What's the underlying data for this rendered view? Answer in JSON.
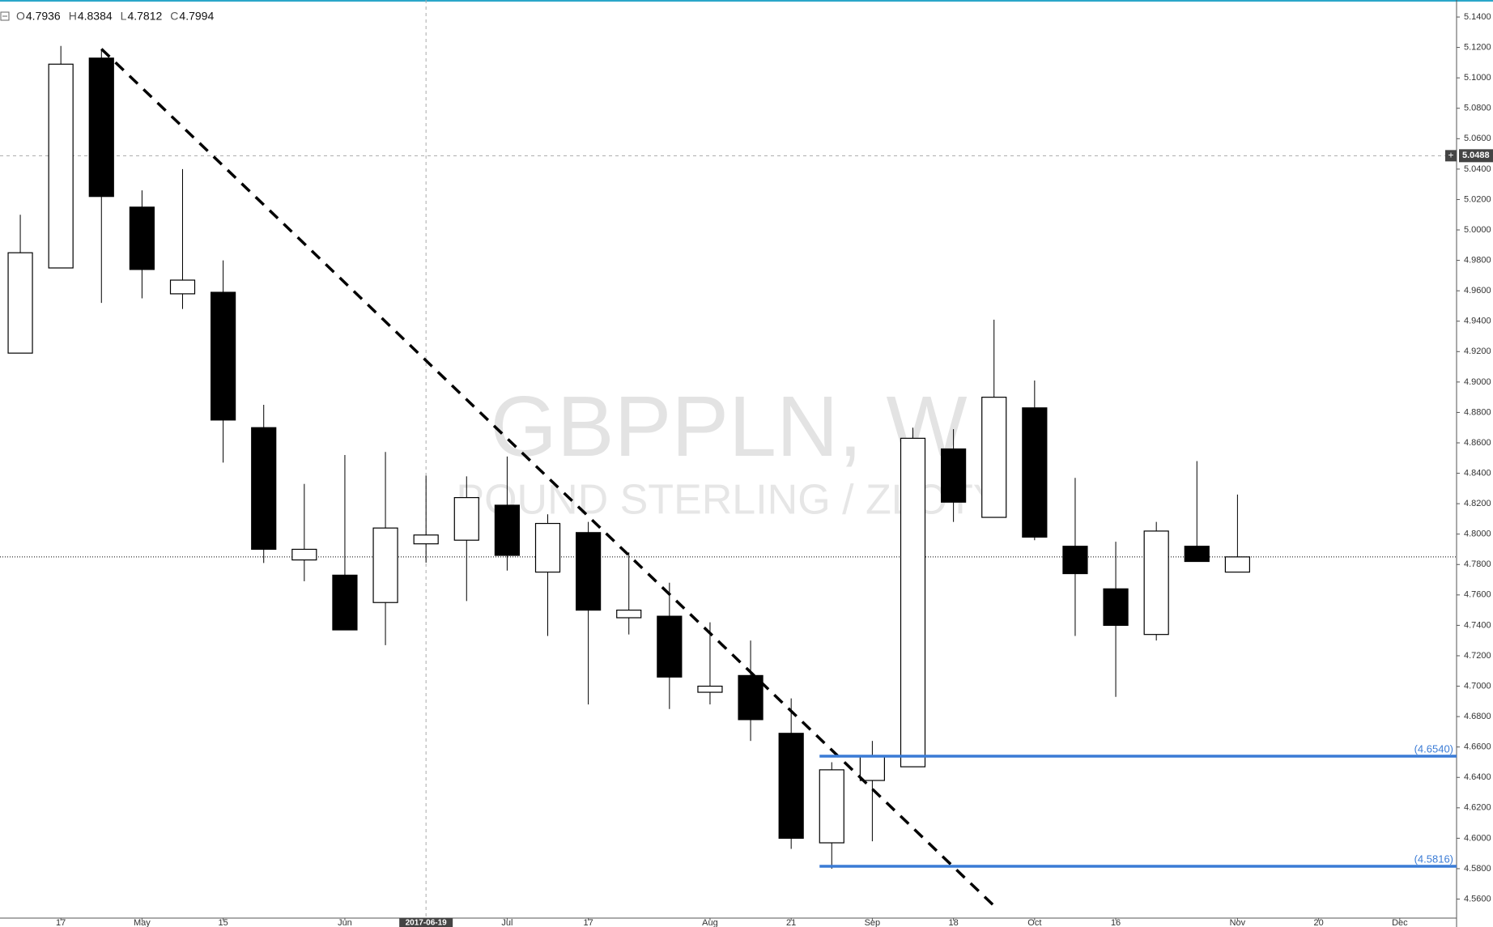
{
  "chart_data": {
    "type": "candlestick",
    "title": "GBPPLN, W",
    "subtitle": "POUND STERLING / ZLOTY",
    "ohlc_labels": [
      "O",
      "H",
      "L",
      "C"
    ],
    "hover_index": 10,
    "open": [
      4.919,
      4.975,
      5.113,
      5.015,
      4.958,
      4.959,
      4.87,
      4.783,
      4.773,
      4.755,
      4.7936,
      4.796,
      4.819,
      4.775,
      4.801,
      4.745,
      4.746,
      4.696,
      4.707,
      4.669,
      4.597,
      4.638,
      4.647,
      4.856,
      4.811,
      4.883,
      4.792,
      4.764,
      4.734,
      4.792,
      4.775
    ],
    "high": [
      5.01,
      5.121,
      5.119,
      5.026,
      5.04,
      4.98,
      4.885,
      4.833,
      4.852,
      4.854,
      4.8384,
      4.838,
      4.851,
      4.813,
      4.808,
      4.788,
      4.768,
      4.742,
      4.73,
      4.692,
      4.65,
      4.664,
      4.87,
      4.869,
      4.941,
      4.901,
      4.837,
      4.795,
      4.808,
      4.848,
      4.826
    ],
    "low": [
      4.919,
      4.975,
      4.952,
      4.955,
      4.948,
      4.847,
      4.781,
      4.769,
      4.737,
      4.727,
      4.7812,
      4.756,
      4.776,
      4.733,
      4.688,
      4.734,
      4.685,
      4.688,
      4.664,
      4.593,
      4.58,
      4.598,
      4.647,
      4.808,
      4.811,
      4.796,
      4.733,
      4.693,
      4.73,
      4.782,
      4.775
    ],
    "close": [
      4.985,
      5.109,
      5.022,
      4.974,
      4.967,
      4.875,
      4.79,
      4.79,
      4.737,
      4.804,
      4.7994,
      4.824,
      4.786,
      4.807,
      4.75,
      4.75,
      4.706,
      4.7,
      4.678,
      4.6,
      4.645,
      4.654,
      4.863,
      4.821,
      4.89,
      4.798,
      4.774,
      4.74,
      4.802,
      4.782,
      4.785
    ],
    "up_color": "#ffffff",
    "down_color": "#000000",
    "xlim": [
      -0.5,
      35.4
    ],
    "xticks": [
      {
        "value": 1,
        "label": "17"
      },
      {
        "value": 3,
        "label": "May"
      },
      {
        "value": 5,
        "label": "15"
      },
      {
        "value": 8,
        "label": "Jun"
      },
      {
        "value": 12,
        "label": "Jul"
      },
      {
        "value": 14,
        "label": "17"
      },
      {
        "value": 17,
        "label": "Aug"
      },
      {
        "value": 19,
        "label": "21"
      },
      {
        "value": 21,
        "label": "Sep"
      },
      {
        "value": 23,
        "label": "18"
      },
      {
        "value": 25,
        "label": "Oct"
      },
      {
        "value": 27,
        "label": "16"
      },
      {
        "value": 30,
        "label": "Nov"
      },
      {
        "value": 32,
        "label": "20"
      },
      {
        "value": 34,
        "label": "Dec"
      }
    ],
    "ylim": [
      4.5475,
      5.148
    ],
    "yticks": [
      {
        "value": 4.56,
        "label": "4.5600"
      },
      {
        "value": 4.58,
        "label": "4.5800"
      },
      {
        "value": 4.6,
        "label": "4.6000"
      },
      {
        "value": 4.62,
        "label": "4.6200"
      },
      {
        "value": 4.64,
        "label": "4.6400"
      },
      {
        "value": 4.66,
        "label": "4.6600"
      },
      {
        "value": 4.68,
        "label": "4.6800"
      },
      {
        "value": 4.7,
        "label": "4.7000"
      },
      {
        "value": 4.72,
        "label": "4.7200"
      },
      {
        "value": 4.74,
        "label": "4.7400"
      },
      {
        "value": 4.76,
        "label": "4.7600"
      },
      {
        "value": 4.78,
        "label": "4.7800"
      },
      {
        "value": 4.8,
        "label": "4.8000"
      },
      {
        "value": 4.82,
        "label": "4.8200"
      },
      {
        "value": 4.84,
        "label": "4.8400"
      },
      {
        "value": 4.86,
        "label": "4.8600"
      },
      {
        "value": 4.88,
        "label": "4.8800"
      },
      {
        "value": 4.9,
        "label": "4.9000"
      },
      {
        "value": 4.92,
        "label": "4.9200"
      },
      {
        "value": 4.94,
        "label": "4.9400"
      },
      {
        "value": 4.96,
        "label": "4.9600"
      },
      {
        "value": 4.98,
        "label": "4.9800"
      },
      {
        "value": 5.0,
        "label": "5.0000"
      },
      {
        "value": 5.02,
        "label": "5.0200"
      },
      {
        "value": 5.04,
        "label": "5.0400"
      },
      {
        "value": 5.06,
        "label": "5.0600"
      },
      {
        "value": 5.08,
        "label": "5.0800"
      },
      {
        "value": 5.1,
        "label": "5.1000"
      },
      {
        "value": 5.12,
        "label": "5.1200"
      },
      {
        "value": 5.14,
        "label": "5.1400"
      }
    ],
    "crosshair": {
      "x": 10,
      "x_label": "2017-06-19",
      "y": {
        "value": 5.0488,
        "label": "5.0488"
      }
    },
    "levels": [
      {
        "value": 4.654,
        "label": "(4.6540)",
        "x_from": 19.7,
        "color": "#3a7bd5"
      },
      {
        "value": 4.5816,
        "label": "(4.5816)",
        "x_from": 19.7,
        "color": "#3a7bd5"
      }
    ],
    "trendline": {
      "x": [
        2,
        24.1
      ],
      "y": [
        5.119,
        4.553
      ]
    }
  }
}
